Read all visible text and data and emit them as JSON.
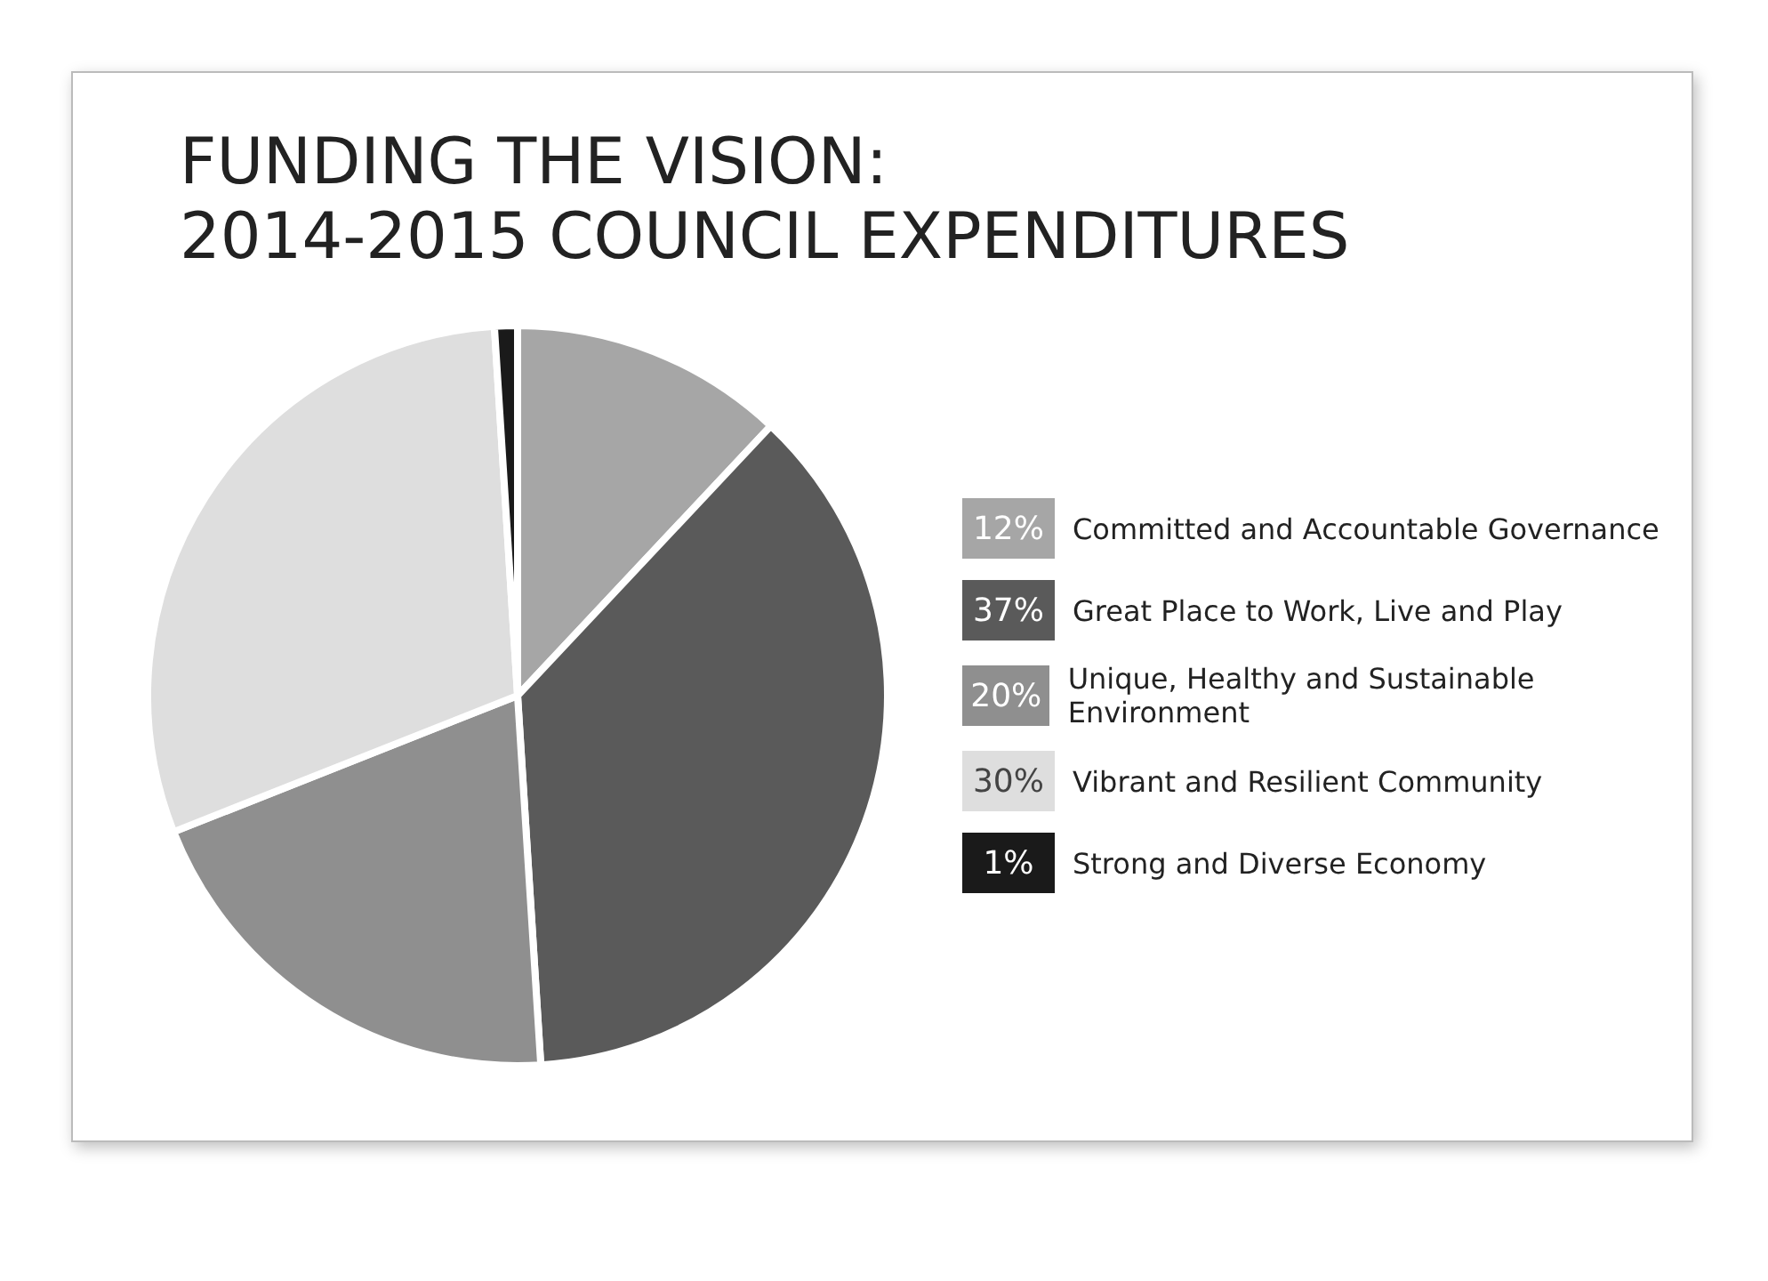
{
  "chart_data": {
    "type": "pie",
    "title": "FUNDING THE VISION:\n2014-2015 COUNCIL EXPENDITURES",
    "categories": [
      "Committed and Accountable Governance",
      "Great Place to Work, Live and Play",
      "Unique, Healthy and Sustainable Environment",
      "Vibrant and Resilient Community",
      "Strong and Diverse Economy"
    ],
    "values": [
      12,
      37,
      20,
      30,
      1
    ],
    "colors": [
      "#a6a6a6",
      "#5a5a5a",
      "#8f8f8f",
      "#dedede",
      "#1a1a1a"
    ],
    "value_labels": [
      "12%",
      "37%",
      "20%",
      "30%",
      "1%"
    ],
    "legend": "right"
  }
}
